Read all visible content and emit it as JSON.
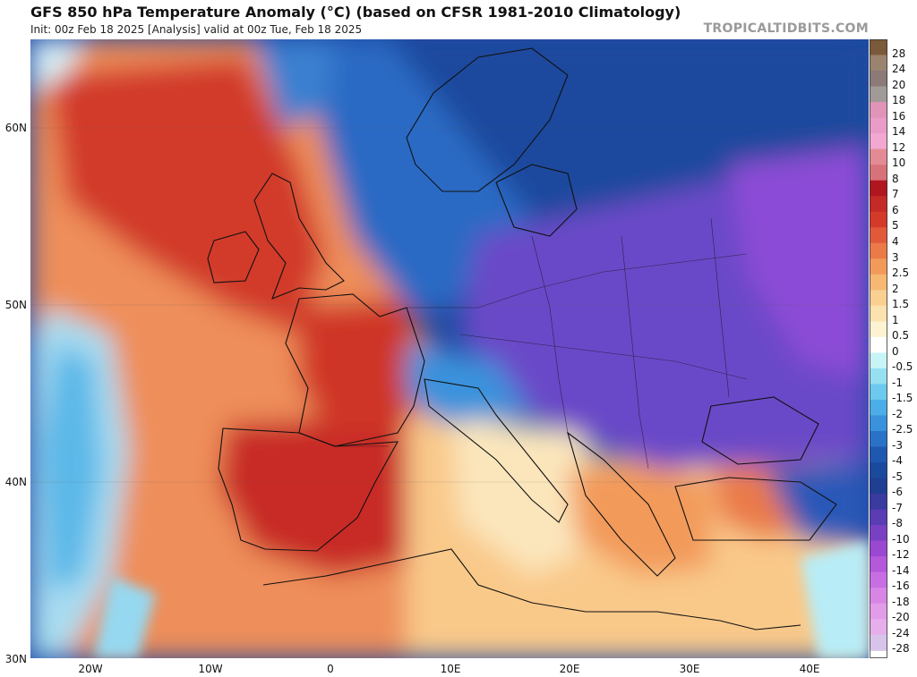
{
  "header": {
    "title": "GFS 850 hPa Temperature Anomaly (°C) (based on CFSR 1981-2010 Climatology)",
    "subtitle": "Init: 00z Feb 18 2025   [Analysis]   valid at 00z Tue, Feb 18 2025",
    "brand": "TROPICALTIDBITS.COM"
  },
  "map": {
    "lat_labels": [
      "60N",
      "50N",
      "40N",
      "30N"
    ],
    "lon_labels": [
      "20W",
      "10W",
      "0",
      "10E",
      "20E",
      "30E",
      "40E"
    ],
    "lon_range": [
      -25,
      45
    ],
    "lat_range": [
      30,
      65
    ]
  },
  "colorbar": {
    "labels": [
      "28",
      "24",
      "20",
      "18",
      "16",
      "14",
      "12",
      "10",
      "8",
      "7",
      "6",
      "5",
      "4",
      "3",
      "2.5",
      "2",
      "1.5",
      "1",
      "0.5",
      "0",
      "-0.5",
      "-1",
      "-1.5",
      "-2",
      "-2.5",
      "-3",
      "-4",
      "-5",
      "-6",
      "-7",
      "-8",
      "-10",
      "-12",
      "-14",
      "-16",
      "-18",
      "-20",
      "-24",
      "-28"
    ],
    "colors": [
      "#7a5a3a",
      "#9a8470",
      "#8c7a78",
      "#a09a98",
      "#e094b8",
      "#ea9cc8",
      "#f2a8d0",
      "#e38b94",
      "#d8727a",
      "#b0161e",
      "#c42a26",
      "#d43a2a",
      "#e05a3a",
      "#ea7a48",
      "#f29a5a",
      "#f6b872",
      "#f9d092",
      "#fbe2ae",
      "#fdf2d2",
      "#ffffff",
      "#c8f4f8",
      "#96e0f2",
      "#6ccaee",
      "#4caee8",
      "#3a92dc",
      "#2a72c8",
      "#1e58b0",
      "#1a4a9e",
      "#1e3f92",
      "#3a3aa0",
      "#5a3cb4",
      "#7a40c4",
      "#9a48d2",
      "#b458dc",
      "#c86ee2",
      "#d886e6",
      "#e29ce8",
      "#e6aeea",
      "#d8c4ea"
    ]
  }
}
